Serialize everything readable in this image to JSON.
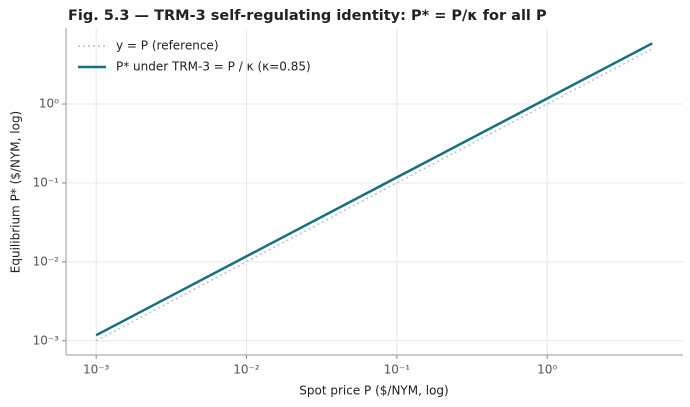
{
  "chart_data": {
    "type": "line",
    "title": "Fig. 5.3 — TRM-3 self-regulating identity:  P* = P/κ for all P",
    "x_label": "Spot price P  ($/NYM, log)",
    "y_label": "Equilibrium P*  ($/NYM, log)",
    "x": [
      0.001,
      5
    ],
    "series": [
      {
        "name": "y = P (reference)",
        "color": "#b4c2c6",
        "style": "dotted",
        "values": [
          0.001,
          5
        ]
      },
      {
        "name": "P* under TRM-3  =  P / κ  (κ=0.85)",
        "color": "#16717f",
        "style": "solid",
        "values": [
          0.00117647,
          5.88235
        ]
      }
    ],
    "xscale": "log",
    "yscale": "log",
    "xlim": [
      0.00063,
      8.0
    ],
    "ylim": [
      0.00066,
      9.2
    ],
    "xticks": [
      {
        "value": 0.001,
        "label": "10⁻³"
      },
      {
        "value": 0.01,
        "label": "10⁻²"
      },
      {
        "value": 0.1,
        "label": "10⁻¹"
      },
      {
        "value": 1,
        "label": "10⁰"
      }
    ],
    "yticks": [
      {
        "value": 0.001,
        "label": "10⁻³"
      },
      {
        "value": 0.01,
        "label": "10⁻²"
      },
      {
        "value": 0.1,
        "label": "10⁻¹"
      },
      {
        "value": 1,
        "label": "10⁰"
      }
    ],
    "grid": true,
    "legend": "upper left"
  }
}
